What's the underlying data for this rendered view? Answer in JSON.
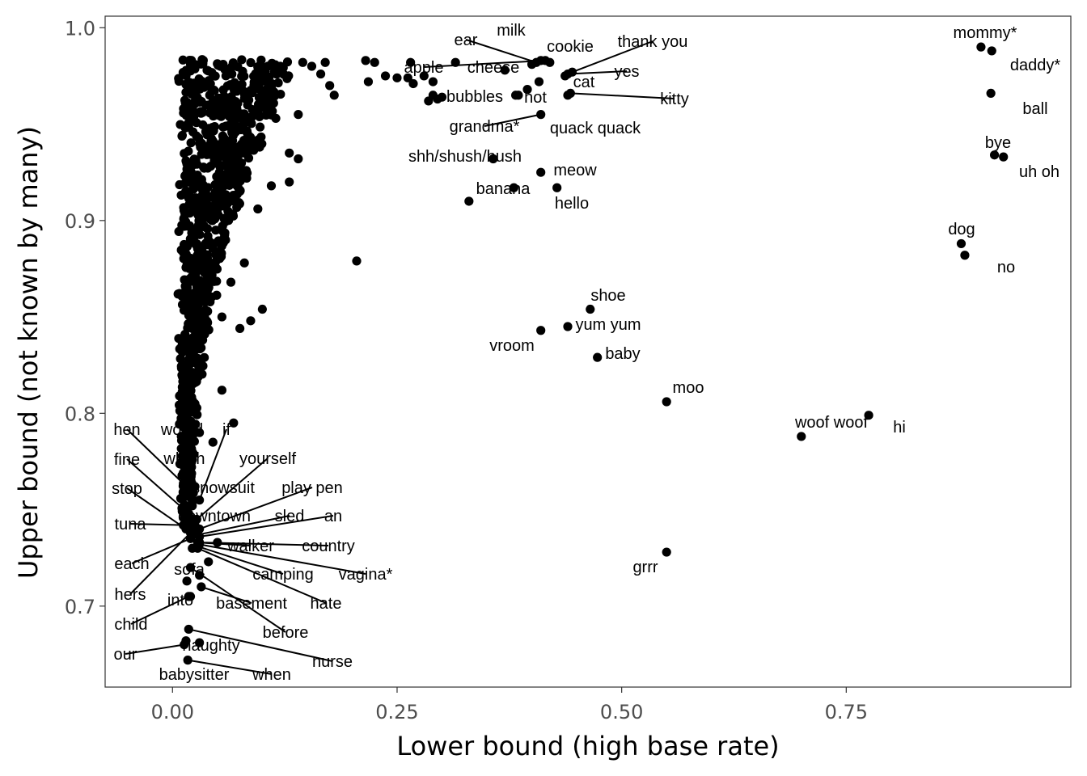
{
  "chart_data": {
    "type": "scatter",
    "xlabel": "Lower bound (high base rate)",
    "ylabel": "Upper bound (not known by many)",
    "xlim": [
      -0.075,
      1.0
    ],
    "ylim": [
      0.658,
      1.006
    ],
    "xticks": [
      0.0,
      0.25,
      0.5,
      0.75
    ],
    "xtick_labels": [
      "0.00",
      "0.25",
      "0.50",
      "0.75"
    ],
    "yticks": [
      0.7,
      0.8,
      0.9,
      1.0
    ],
    "ytick_labels": [
      "0.7",
      "0.8",
      "0.9",
      "1.0"
    ],
    "grid": false,
    "legend": "none",
    "point_color": "#000000",
    "labeled_points": [
      {
        "label": "mommy*",
        "x": 0.9,
        "y": 0.99
      },
      {
        "label": "daddy*",
        "x": 0.912,
        "y": 0.988
      },
      {
        "label": "ball",
        "x": 0.911,
        "y": 0.966
      },
      {
        "label": "bye",
        "x": 0.915,
        "y": 0.934
      },
      {
        "label": "uh oh",
        "x": 0.925,
        "y": 0.933
      },
      {
        "label": "dog",
        "x": 0.878,
        "y": 0.888
      },
      {
        "label": "no",
        "x": 0.882,
        "y": 0.882
      },
      {
        "label": "shoe",
        "x": 0.465,
        "y": 0.854
      },
      {
        "label": "yum yum",
        "x": 0.44,
        "y": 0.845
      },
      {
        "label": "vroom",
        "x": 0.41,
        "y": 0.843
      },
      {
        "label": "baby",
        "x": 0.473,
        "y": 0.829
      },
      {
        "label": "moo",
        "x": 0.55,
        "y": 0.806
      },
      {
        "label": "woof woof",
        "x": 0.7,
        "y": 0.788
      },
      {
        "label": "hi",
        "x": 0.775,
        "y": 0.799
      },
      {
        "label": "grrr",
        "x": 0.55,
        "y": 0.728
      },
      {
        "label": "meow",
        "x": 0.41,
        "y": 0.925
      },
      {
        "label": "hello",
        "x": 0.428,
        "y": 0.917
      },
      {
        "label": "banana",
        "x": 0.38,
        "y": 0.917
      },
      {
        "label": "shh/shush/hush",
        "x": 0.357,
        "y": 0.932
      },
      {
        "label": "grandma*",
        "x": 0.41,
        "y": 0.955
      },
      {
        "label": "quack quack",
        "x": 0.44,
        "y": 0.965
      },
      {
        "label": "kitty",
        "x": 0.443,
        "y": 0.966
      },
      {
        "label": "hot",
        "x": 0.408,
        "y": 0.972
      },
      {
        "label": "bubbles",
        "x": 0.385,
        "y": 0.965
      },
      {
        "label": "cat",
        "x": 0.437,
        "y": 0.975
      },
      {
        "label": "yes",
        "x": 0.44,
        "y": 0.976
      },
      {
        "label": "thank you",
        "x": 0.445,
        "y": 0.977
      },
      {
        "label": "cookie",
        "x": 0.42,
        "y": 0.982
      },
      {
        "label": "milk",
        "x": 0.41,
        "y": 0.983
      },
      {
        "label": "ear",
        "x": 0.405,
        "y": 0.982
      },
      {
        "label": "apple",
        "x": 0.415,
        "y": 0.983
      },
      {
        "label": "cheese",
        "x": 0.4,
        "y": 0.981
      },
      {
        "label": "hen",
        "x": 0.02,
        "y": 0.76
      },
      {
        "label": "would",
        "x": 0.025,
        "y": 0.762
      },
      {
        "label": "if",
        "x": 0.03,
        "y": 0.755
      },
      {
        "label": "fine",
        "x": 0.018,
        "y": 0.748
      },
      {
        "label": "which",
        "x": 0.022,
        "y": 0.752
      },
      {
        "label": "yourself",
        "x": 0.027,
        "y": 0.745
      },
      {
        "label": "stop",
        "x": 0.015,
        "y": 0.74
      },
      {
        "label": "snowsuit",
        "x": 0.025,
        "y": 0.742
      },
      {
        "label": "play pen",
        "x": 0.03,
        "y": 0.74
      },
      {
        "label": "tuna",
        "x": 0.012,
        "y": 0.742
      },
      {
        "label": "downtown",
        "x": 0.025,
        "y": 0.738
      },
      {
        "label": "sled",
        "x": 0.028,
        "y": 0.737
      },
      {
        "label": "an",
        "x": 0.03,
        "y": 0.736
      },
      {
        "label": "walker",
        "x": 0.028,
        "y": 0.733
      },
      {
        "label": "country",
        "x": 0.03,
        "y": 0.733
      },
      {
        "label": "each",
        "x": 0.02,
        "y": 0.735
      },
      {
        "label": "sofa",
        "x": 0.022,
        "y": 0.73
      },
      {
        "label": "camping",
        "x": 0.028,
        "y": 0.731
      },
      {
        "label": "vagina*",
        "x": 0.03,
        "y": 0.732
      },
      {
        "label": "hers",
        "x": 0.02,
        "y": 0.738
      },
      {
        "label": "into",
        "x": 0.016,
        "y": 0.713
      },
      {
        "label": "basement",
        "x": 0.032,
        "y": 0.71
      },
      {
        "label": "hate",
        "x": 0.028,
        "y": 0.73
      },
      {
        "label": "before",
        "x": 0.02,
        "y": 0.72
      },
      {
        "label": "child",
        "x": 0.018,
        "y": 0.705
      },
      {
        "label": "naughty",
        "x": 0.03,
        "y": 0.681
      },
      {
        "label": "nurse",
        "x": 0.018,
        "y": 0.688
      },
      {
        "label": "our",
        "x": 0.013,
        "y": 0.68
      },
      {
        "label": "babysitter",
        "x": 0.015,
        "y": 0.682
      },
      {
        "label": "when",
        "x": 0.017,
        "y": 0.672
      }
    ],
    "other_points": [
      [
        0.205,
        0.879
      ],
      [
        0.215,
        0.983
      ],
      [
        0.225,
        0.982
      ],
      [
        0.237,
        0.975
      ],
      [
        0.25,
        0.974
      ],
      [
        0.262,
        0.974
      ],
      [
        0.265,
        0.982
      ],
      [
        0.268,
        0.971
      ],
      [
        0.285,
        0.962
      ],
      [
        0.29,
        0.972
      ],
      [
        0.295,
        0.963
      ],
      [
        0.3,
        0.964
      ],
      [
        0.29,
        0.965
      ],
      [
        0.315,
        0.982
      ],
      [
        0.33,
        0.91
      ],
      [
        0.37,
        0.978
      ],
      [
        0.382,
        0.965
      ],
      [
        0.395,
        0.968
      ],
      [
        0.218,
        0.972
      ],
      [
        0.28,
        0.975
      ],
      [
        0.1,
        0.854
      ],
      [
        0.13,
        0.92
      ],
      [
        0.13,
        0.935
      ],
      [
        0.14,
        0.932
      ],
      [
        0.095,
        0.906
      ],
      [
        0.075,
        0.844
      ],
      [
        0.087,
        0.848
      ],
      [
        0.055,
        0.85
      ],
      [
        0.065,
        0.868
      ],
      [
        0.055,
        0.812
      ],
      [
        0.068,
        0.795
      ],
      [
        0.08,
        0.878
      ],
      [
        0.11,
        0.918
      ],
      [
        0.115,
        0.953
      ],
      [
        0.14,
        0.955
      ],
      [
        0.155,
        0.98
      ],
      [
        0.165,
        0.976
      ],
      [
        0.17,
        0.982
      ],
      [
        0.175,
        0.97
      ],
      [
        0.18,
        0.965
      ],
      [
        0.145,
        0.982
      ],
      [
        0.12,
        0.98
      ],
      [
        0.02,
        0.705
      ],
      [
        0.03,
        0.716
      ],
      [
        0.04,
        0.723
      ],
      [
        0.03,
        0.79
      ],
      [
        0.045,
        0.785
      ],
      [
        0.05,
        0.733
      ]
    ],
    "dense_cloud": {
      "description": "",
      "n": 900,
      "x_range": [
        0.005,
        0.12
      ],
      "y_range": [
        0.74,
        0.984
      ]
    }
  }
}
